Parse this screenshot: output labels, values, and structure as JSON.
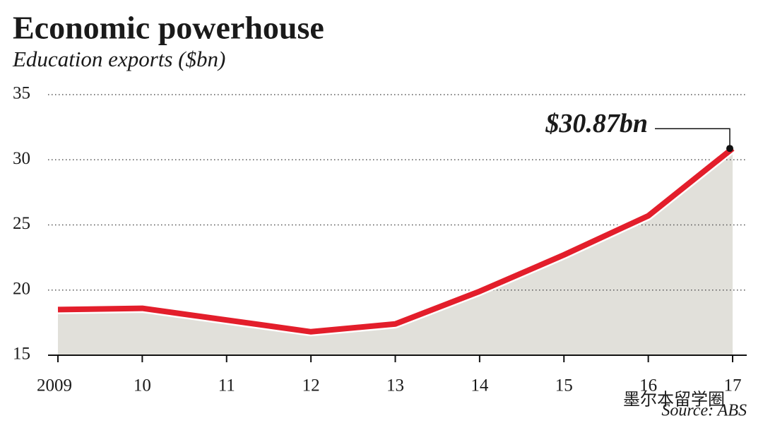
{
  "chart_data": {
    "type": "area-line",
    "title": "Economic powerhouse",
    "subtitle": "Education exports ($bn)",
    "source": "Source: ABS",
    "watermark": "墨尔本留学圈",
    "categories": [
      "2009",
      "10",
      "11",
      "12",
      "13",
      "14",
      "15",
      "16",
      "17"
    ],
    "values": [
      18.5,
      18.6,
      17.7,
      16.8,
      17.4,
      19.9,
      22.7,
      25.7,
      30.87
    ],
    "value_labels": [
      null,
      null,
      null,
      null,
      null,
      null,
      null,
      null,
      "$30.87bn"
    ],
    "color": "#e31e2b",
    "area_color": "#e1e0da",
    "ylim": [
      15,
      35
    ],
    "yticks": [
      15,
      20,
      25,
      30,
      35
    ],
    "grid": true
  }
}
